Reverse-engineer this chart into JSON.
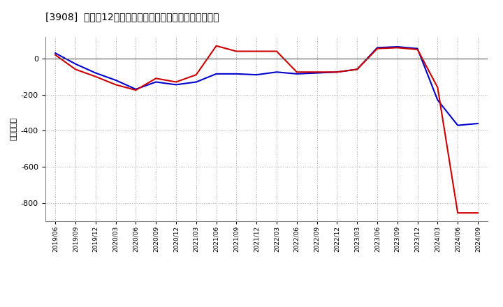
{
  "title": "[3908]  利益だ12か月移動合計の対前年同期増減額の推移",
  "ylabel": "（百万円）",
  "background_color": "#ffffff",
  "plot_bg_color": "#ffffff",
  "grid_color": "#aaaaaa",
  "ylim": [
    -900,
    120
  ],
  "yticks": [
    0,
    -200,
    -400,
    -600,
    -800
  ],
  "x_labels": [
    "2019/06",
    "2019/09",
    "2019/12",
    "2020/03",
    "2020/06",
    "2020/09",
    "2020/12",
    "2021/03",
    "2021/06",
    "2021/09",
    "2021/12",
    "2022/03",
    "2022/06",
    "2022/09",
    "2022/12",
    "2023/03",
    "2023/06",
    "2023/09",
    "2023/12",
    "2024/03",
    "2024/06",
    "2024/09"
  ],
  "keijo_rieki": [
    30,
    -30,
    -80,
    -120,
    -170,
    -130,
    -145,
    -130,
    -85,
    -85,
    -90,
    -75,
    -85,
    -80,
    -75,
    -60,
    60,
    65,
    55,
    -230,
    -370,
    -360
  ],
  "touki_junrieki": [
    20,
    -60,
    -100,
    -145,
    -175,
    -110,
    -130,
    -90,
    70,
    40,
    40,
    40,
    -75,
    -75,
    -75,
    -60,
    55,
    60,
    50,
    -160,
    -855,
    -855
  ],
  "line_blue": "#0000cc",
  "line_red": "#cc0000",
  "line_width": 1.5
}
